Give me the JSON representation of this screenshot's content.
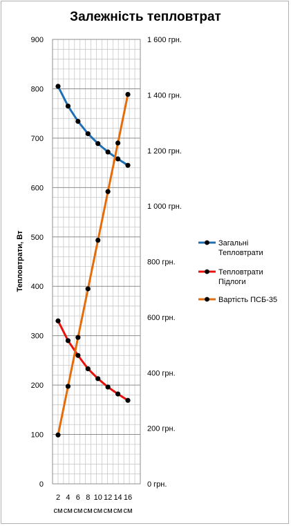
{
  "chart_data": {
    "type": "line",
    "title": "Залежність тепловтрат",
    "ylabel": "Тепловтрати, Вт",
    "ylabel_right": "",
    "xlabel": "",
    "categories": [
      "2 см",
      "4 см",
      "6 см",
      "8 см",
      "10 см",
      "12 см",
      "14 см",
      "16 см"
    ],
    "ylim": [
      0,
      900
    ],
    "ylim_right": [
      0,
      1600
    ],
    "yticks": [
      0,
      100,
      200,
      300,
      400,
      500,
      600,
      700,
      800,
      900
    ],
    "yticks_right": [
      "0 грн.",
      "200 грн.",
      "400 грн.",
      "600 грн.",
      "800 грн.",
      "1 000 грн.",
      "1 200 грн.",
      "1 400 грн.",
      "1 600 грн."
    ],
    "yticks_right_values": [
      0,
      200,
      400,
      600,
      800,
      1000,
      1200,
      1400,
      1600
    ],
    "grid": true,
    "legend_position": "right",
    "series": [
      {
        "name": "Загальні Тепловтрати",
        "legend_lines": [
          "Загальні",
          "Тепловтрати"
        ],
        "axis": "left",
        "color": "#1f6fb5",
        "values": [
          805,
          765,
          734,
          709,
          689,
          672,
          658,
          645
        ]
      },
      {
        "name": "Тепловтрати Підлоги",
        "legend_lines": [
          "Тепловтрати",
          "Підлоги"
        ],
        "axis": "left",
        "color": "#e8110c",
        "values": [
          330,
          290,
          260,
          233,
          213,
          196,
          182,
          169
        ]
      },
      {
        "name": "Вартість ПСБ-35",
        "legend_lines": [
          "Вартість ПСБ-35"
        ],
        "axis": "right",
        "color": "#e46c0a",
        "values": [
          176,
          351,
          527,
          702,
          877,
          1052,
          1227,
          1402
        ]
      }
    ]
  }
}
